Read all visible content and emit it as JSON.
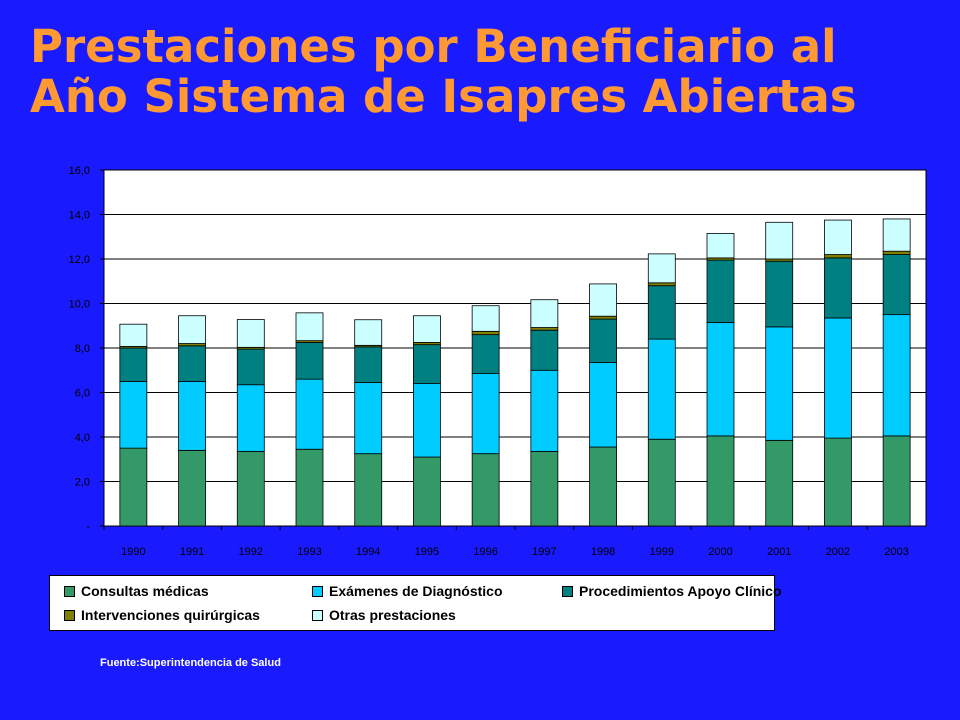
{
  "title": {
    "line1": "Prestaciones por Beneficiario al",
    "line2": "Año Sistema de Isapres Abiertas"
  },
  "source": "Fuente:Superintendencia  de Salud",
  "chart_data": {
    "type": "bar",
    "stacked": true,
    "categories": [
      "1990",
      "1991",
      "1992",
      "1993",
      "1994",
      "1995",
      "1996",
      "1997",
      "1998",
      "1999",
      "2000",
      "2001",
      "2002",
      "2003"
    ],
    "ylim": [
      0,
      16
    ],
    "yticks": [
      0,
      2,
      4,
      6,
      8,
      10,
      12,
      14,
      16
    ],
    "ytick_labels": [
      "-",
      "2,0",
      "4,0",
      "6,0",
      "8,0",
      "10,0",
      "12,0",
      "14,0",
      "16,0"
    ],
    "grid": true,
    "legend_position": "bottom",
    "series": [
      {
        "name": "Consultas médicas",
        "color": "#339966",
        "values": [
          3.5,
          3.4,
          3.35,
          3.45,
          3.25,
          3.1,
          3.25,
          3.35,
          3.55,
          3.9,
          4.05,
          3.85,
          3.95,
          4.05
        ]
      },
      {
        "name": "Exámenes de Diagnóstico",
        "color": "#00ccff",
        "values": [
          3.0,
          3.1,
          3.0,
          3.15,
          3.2,
          3.3,
          3.6,
          3.65,
          3.8,
          4.5,
          5.1,
          5.1,
          5.4,
          5.45
        ]
      },
      {
        "name": "Procedimientos Apoyo Clínico",
        "color": "#008080",
        "values": [
          1.5,
          1.6,
          1.6,
          1.65,
          1.6,
          1.75,
          1.75,
          1.8,
          1.95,
          2.4,
          2.8,
          2.95,
          2.7,
          2.7
        ]
      },
      {
        "name": "Intervenciones quirúrgicas",
        "color": "#808000",
        "values": [
          0.07,
          0.1,
          0.08,
          0.08,
          0.07,
          0.1,
          0.15,
          0.12,
          0.13,
          0.13,
          0.1,
          0.1,
          0.15,
          0.15
        ]
      },
      {
        "name": "Otras prestaciones",
        "color": "#ccffff",
        "values": [
          1.0,
          1.25,
          1.25,
          1.25,
          1.15,
          1.2,
          1.15,
          1.25,
          1.45,
          1.3,
          1.1,
          1.65,
          1.55,
          1.45
        ]
      }
    ]
  }
}
